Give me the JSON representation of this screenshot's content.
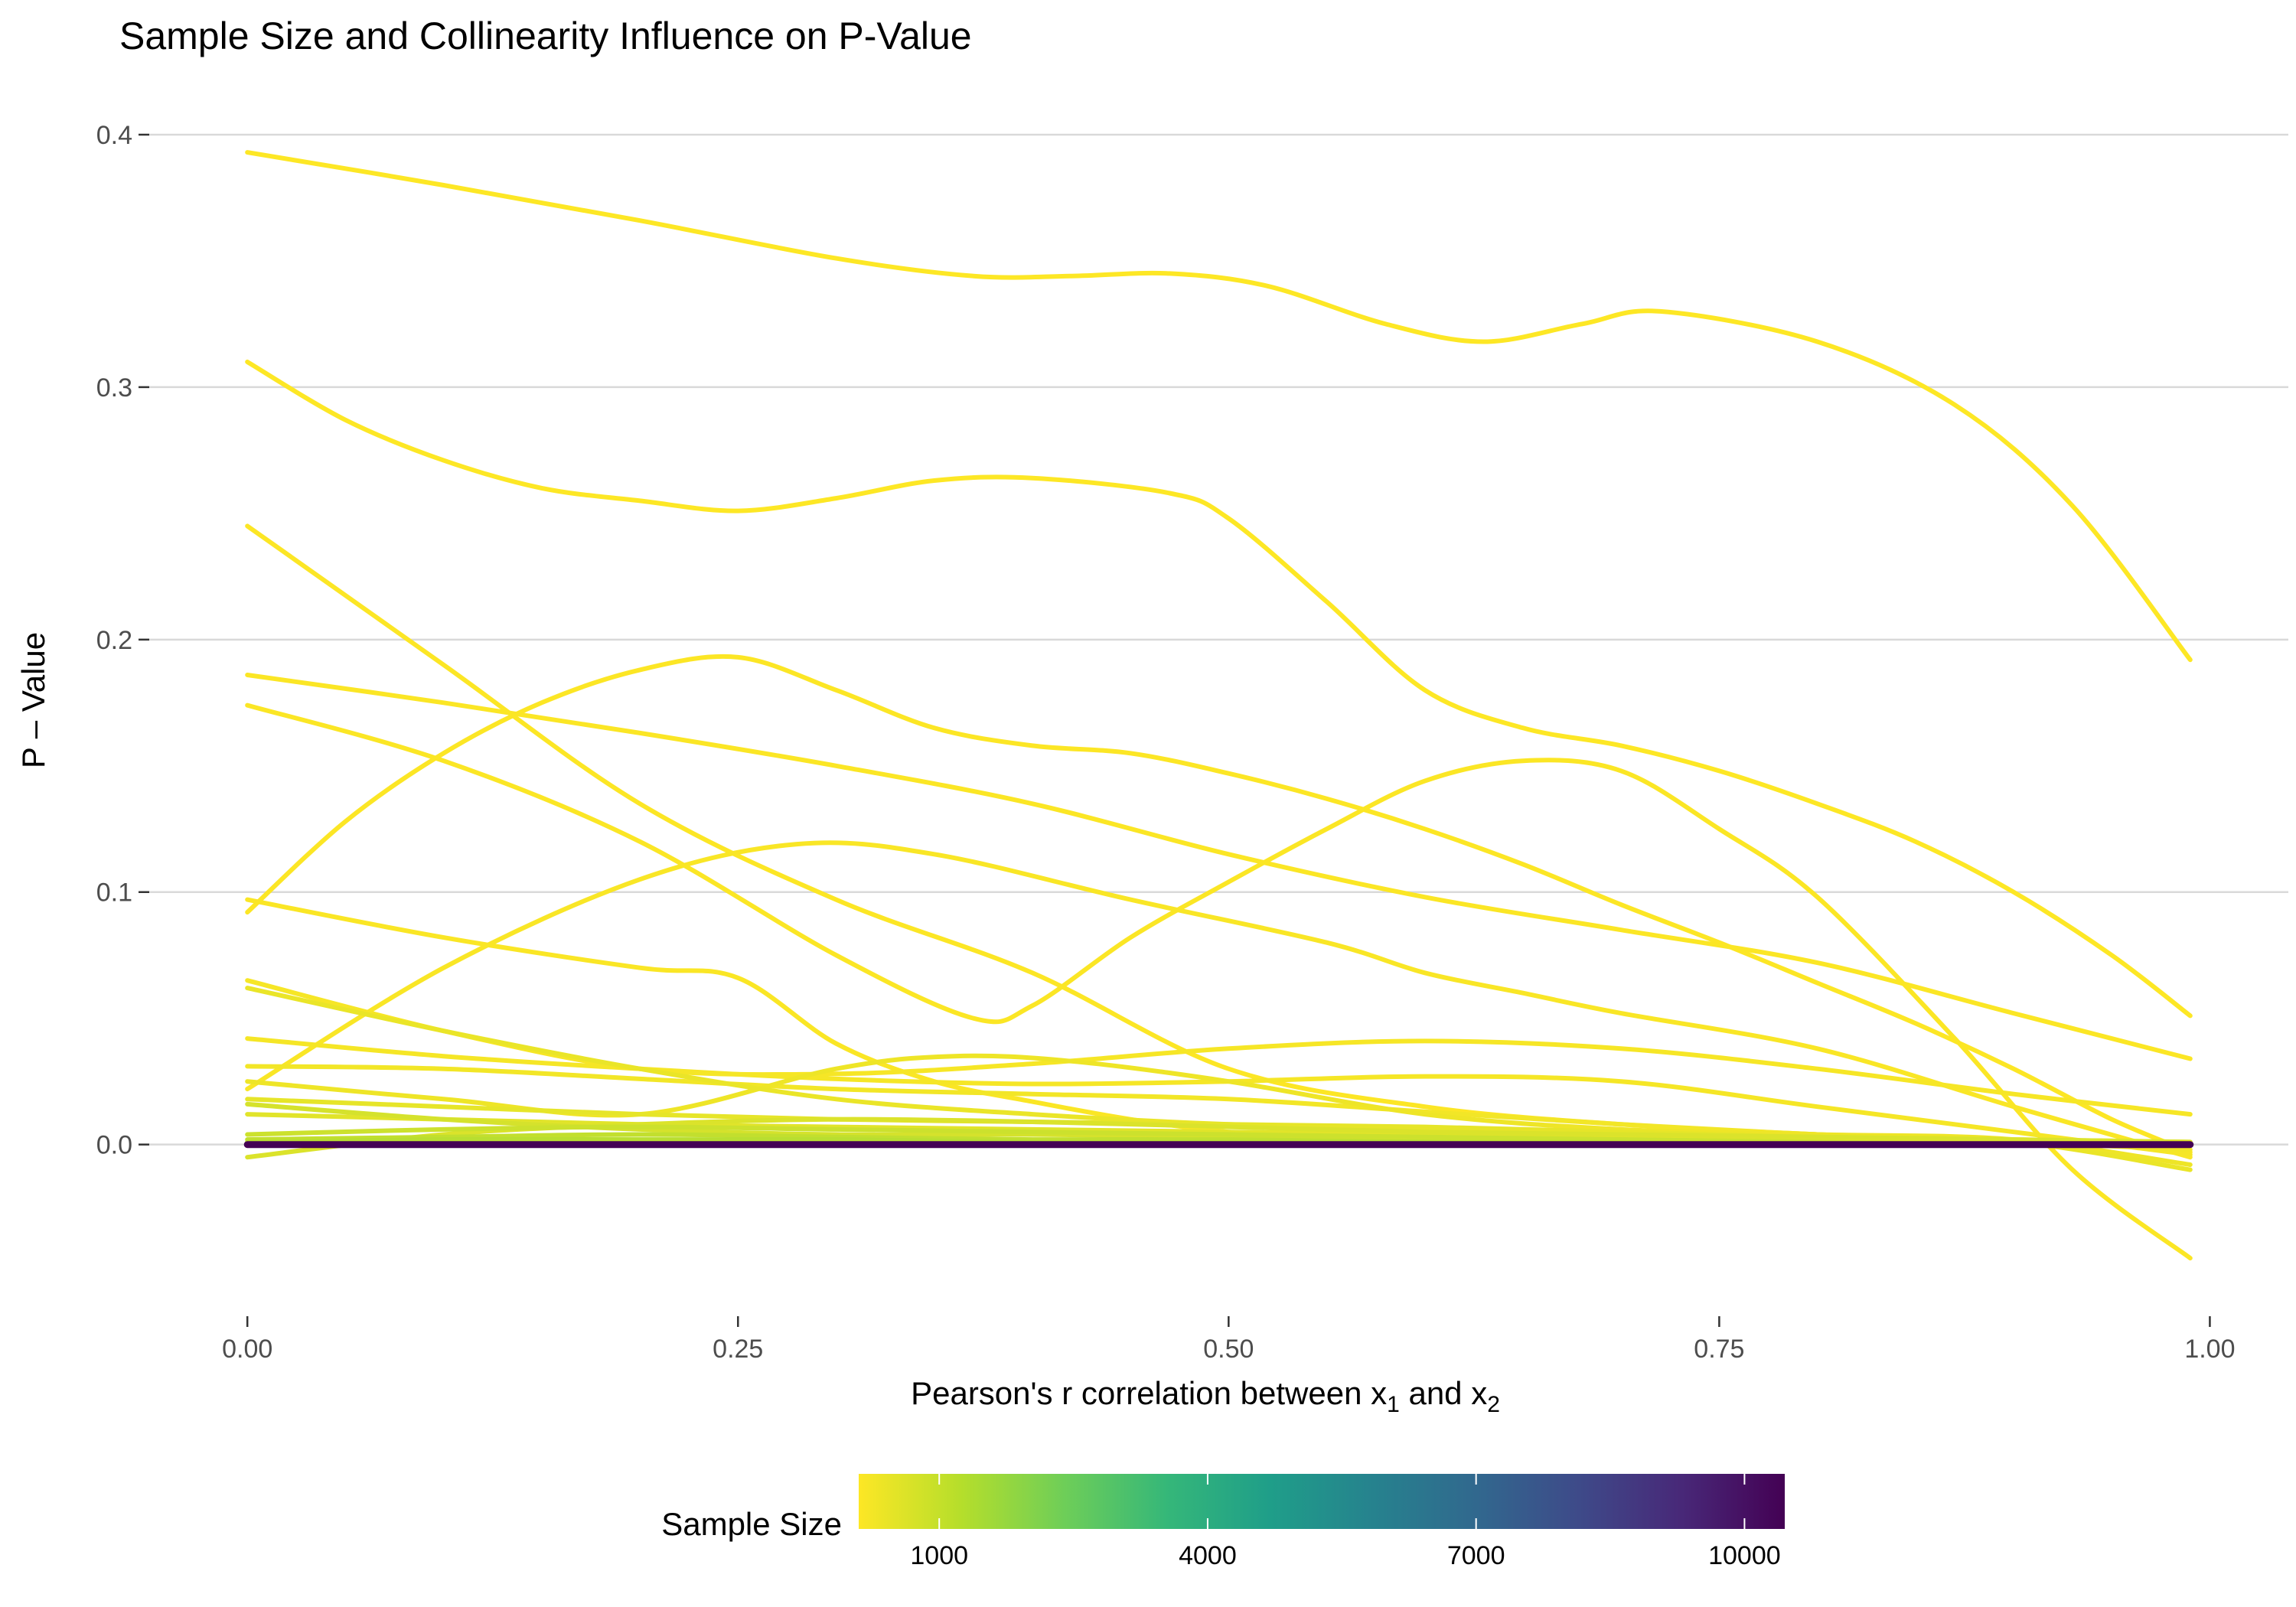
{
  "chart_data": {
    "type": "line",
    "title": "Sample Size and Collinearity Influence on P-Value",
    "xlabel": {
      "base": "Pearson's r correlation between x",
      "sub1": "1",
      "mid": " and x",
      "sub2": "2"
    },
    "ylabel": "P – Value",
    "xlim": [
      -0.05,
      1.04
    ],
    "ylim": [
      -0.068,
      0.42
    ],
    "x_ticks": [
      {
        "value": 0.0,
        "label": "0.00"
      },
      {
        "value": 0.25,
        "label": "0.25"
      },
      {
        "value": 0.5,
        "label": "0.50"
      },
      {
        "value": 0.75,
        "label": "0.75"
      },
      {
        "value": 1.0,
        "label": "1.00"
      }
    ],
    "y_ticks": [
      {
        "value": 0.0,
        "label": "0.0"
      },
      {
        "value": 0.1,
        "label": "0.1"
      },
      {
        "value": 0.2,
        "label": "0.2"
      },
      {
        "value": 0.3,
        "label": "0.3"
      },
      {
        "value": 0.4,
        "label": "0.4"
      }
    ],
    "grid": "horizontal",
    "legend": {
      "title": "Sample Size",
      "position": "bottom",
      "type": "colorbar",
      "range": [
        100,
        10450
      ],
      "ticks": [
        {
          "value": 1000,
          "label": "1000"
        },
        {
          "value": 4000,
          "label": "4000"
        },
        {
          "value": 7000,
          "label": "7000"
        },
        {
          "value": 10000,
          "label": "10000"
        }
      ],
      "colormap": [
        "#FDE725",
        "#B5DE2B",
        "#6ECE58",
        "#35B779",
        "#1F9E89",
        "#26828E",
        "#31688E",
        "#3E4A89",
        "#482878",
        "#440154"
      ]
    },
    "series": [
      {
        "sample_size": 100,
        "color": "#FDE725",
        "x": [
          0,
          0.1,
          0.2,
          0.3,
          0.37,
          0.42,
          0.47,
          0.52,
          0.58,
          0.63,
          0.68,
          0.72,
          0.8,
          0.87,
          0.93,
          0.99
        ],
        "y": [
          0.393,
          0.38,
          0.366,
          0.351,
          0.344,
          0.344,
          0.345,
          0.34,
          0.325,
          0.318,
          0.325,
          0.33,
          0.318,
          0.293,
          0.253,
          0.192
        ]
      },
      {
        "sample_size": 150,
        "color": "#FDE725",
        "x": [
          0,
          0.05,
          0.1,
          0.15,
          0.2,
          0.25,
          0.3,
          0.35,
          0.4,
          0.47,
          0.5,
          0.55,
          0.6,
          0.65,
          0.7,
          0.75,
          0.8,
          0.85,
          0.9,
          0.95,
          0.99
        ],
        "y": [
          0.31,
          0.287,
          0.271,
          0.26,
          0.255,
          0.251,
          0.256,
          0.263,
          0.264,
          0.258,
          0.248,
          0.215,
          0.18,
          0.165,
          0.158,
          0.148,
          0.135,
          0.12,
          0.1,
          0.075,
          0.051
        ]
      },
      {
        "sample_size": 200,
        "color": "#FCE625",
        "x": [
          0,
          0.05,
          0.1,
          0.15,
          0.2,
          0.25,
          0.3,
          0.35,
          0.4,
          0.45,
          0.5,
          0.55,
          0.6,
          0.65,
          0.7,
          0.75,
          0.8,
          0.85,
          0.9,
          0.95,
          0.99
        ],
        "y": [
          0.092,
          0.128,
          0.155,
          0.175,
          0.188,
          0.193,
          0.18,
          0.165,
          0.158,
          0.155,
          0.147,
          0.137,
          0.125,
          0.111,
          0.095,
          0.08,
          0.064,
          0.048,
          0.03,
          0.01,
          -0.003
        ]
      },
      {
        "sample_size": 250,
        "color": "#FCE625",
        "x": [
          0,
          0.1,
          0.2,
          0.3,
          0.4,
          0.5,
          0.6,
          0.7,
          0.8,
          0.87,
          0.93,
          0.99
        ],
        "y": [
          0.245,
          0.19,
          0.135,
          0.097,
          0.068,
          0.03,
          0.015,
          0.008,
          0.004,
          0.002,
          0.001,
          0.0
        ]
      },
      {
        "sample_size": 300,
        "color": "#FBE625",
        "x": [
          0,
          0.1,
          0.2,
          0.3,
          0.4,
          0.5,
          0.6,
          0.7,
          0.8,
          0.9,
          0.99
        ],
        "y": [
          0.186,
          0.175,
          0.163,
          0.15,
          0.135,
          0.115,
          0.098,
          0.085,
          0.072,
          0.052,
          0.034
        ]
      },
      {
        "sample_size": 350,
        "color": "#FBE625",
        "x": [
          0,
          0.1,
          0.2,
          0.3,
          0.37,
          0.4,
          0.45,
          0.5,
          0.55,
          0.6,
          0.65,
          0.7,
          0.75,
          0.8,
          0.87,
          0.93,
          0.99
        ],
        "y": [
          0.174,
          0.152,
          0.12,
          0.075,
          0.05,
          0.055,
          0.082,
          0.104,
          0.125,
          0.144,
          0.152,
          0.148,
          0.125,
          0.098,
          0.042,
          -0.01,
          -0.045
        ]
      },
      {
        "sample_size": 400,
        "color": "#FAE625",
        "x": [
          0,
          0.1,
          0.2,
          0.25,
          0.3,
          0.35,
          0.4,
          0.45,
          0.5,
          0.55,
          0.6,
          0.7,
          0.8,
          0.9,
          0.99
        ],
        "y": [
          0.097,
          0.082,
          0.07,
          0.066,
          0.04,
          0.025,
          0.017,
          0.01,
          0.005,
          0.003,
          0.002,
          0.001,
          0.0,
          0.0,
          0.0
        ]
      },
      {
        "sample_size": 450,
        "color": "#F9E626",
        "x": [
          0,
          0.1,
          0.2,
          0.28,
          0.35,
          0.45,
          0.55,
          0.6,
          0.65,
          0.7,
          0.8,
          0.9,
          0.99
        ],
        "y": [
          0.022,
          0.07,
          0.105,
          0.119,
          0.115,
          0.097,
          0.08,
          0.068,
          0.06,
          0.052,
          0.038,
          0.015,
          -0.005
        ]
      },
      {
        "sample_size": 500,
        "color": "#F6E626",
        "x": [
          0,
          0.1,
          0.2,
          0.3,
          0.4,
          0.5,
          0.6,
          0.7,
          0.8,
          0.9,
          0.99
        ],
        "y": [
          0.065,
          0.045,
          0.03,
          0.028,
          0.032,
          0.038,
          0.041,
          0.038,
          0.03,
          0.02,
          0.012
        ]
      },
      {
        "sample_size": 550,
        "color": "#F5E626",
        "x": [
          0,
          0.1,
          0.2,
          0.3,
          0.4,
          0.5,
          0.6,
          0.7,
          0.8,
          0.9,
          0.99
        ],
        "y": [
          0.042,
          0.035,
          0.03,
          0.026,
          0.024,
          0.025,
          0.027,
          0.025,
          0.015,
          0.005,
          -0.004
        ]
      },
      {
        "sample_size": 600,
        "color": "#F2E627",
        "x": [
          0,
          0.1,
          0.2,
          0.3,
          0.4,
          0.5,
          0.6,
          0.7,
          0.8,
          0.9,
          0.99
        ],
        "y": [
          0.031,
          0.03,
          0.026,
          0.022,
          0.02,
          0.018,
          0.013,
          0.008,
          0.004,
          0.001,
          -0.002
        ]
      },
      {
        "sample_size": 650,
        "color": "#EEE527",
        "x": [
          0,
          0.1,
          0.2,
          0.3,
          0.36,
          0.42,
          0.5,
          0.6,
          0.7,
          0.8,
          0.9,
          0.99
        ],
        "y": [
          0.025,
          0.018,
          0.012,
          0.03,
          0.035,
          0.033,
          0.025,
          0.012,
          0.006,
          0.004,
          0.002,
          -0.008
        ]
      },
      {
        "sample_size": 700,
        "color": "#EAE528",
        "x": [
          0,
          0.1,
          0.2,
          0.3,
          0.4,
          0.5,
          0.6,
          0.7,
          0.8,
          0.9,
          0.99
        ],
        "y": [
          0.062,
          0.045,
          0.03,
          0.018,
          0.012,
          0.008,
          0.006,
          0.004,
          0.002,
          0.001,
          -0.01
        ]
      },
      {
        "sample_size": 750,
        "color": "#E6E529",
        "x": [
          0,
          0.1,
          0.2,
          0.3,
          0.4,
          0.5,
          0.6,
          0.7,
          0.8,
          0.9,
          0.99
        ],
        "y": [
          0.018,
          0.015,
          0.012,
          0.01,
          0.009,
          0.008,
          0.007,
          0.005,
          0.003,
          0.002,
          0.001
        ]
      },
      {
        "sample_size": 800,
        "color": "#E1E42A",
        "x": [
          0,
          0.1,
          0.2,
          0.3,
          0.4,
          0.5,
          0.6,
          0.7,
          0.8,
          0.9,
          0.99
        ],
        "y": [
          0.012,
          0.01,
          0.008,
          0.007,
          0.006,
          0.005,
          0.004,
          0.003,
          0.002,
          0.001,
          0.0
        ]
      },
      {
        "sample_size": 850,
        "color": "#DBE32B",
        "x": [
          0,
          0.1,
          0.2,
          0.3,
          0.4,
          0.5,
          0.6,
          0.7,
          0.8,
          0.9,
          0.99
        ],
        "y": [
          -0.005,
          0.004,
          0.008,
          0.01,
          0.009,
          0.007,
          0.005,
          0.004,
          0.003,
          0.002,
          0.001
        ]
      },
      {
        "sample_size": 900,
        "color": "#D5E22C",
        "x": [
          0,
          0.1,
          0.2,
          0.3,
          0.4,
          0.5,
          0.6,
          0.7,
          0.8,
          0.9,
          0.99
        ],
        "y": [
          0.016,
          0.01,
          0.006,
          0.004,
          0.004,
          0.003,
          0.002,
          0.002,
          0.001,
          0.0,
          0.0
        ]
      },
      {
        "sample_size": 1000,
        "color": "#CCE12D",
        "x": [
          0,
          0.1,
          0.2,
          0.3,
          0.4,
          0.5,
          0.6,
          0.7,
          0.8,
          0.9,
          0.99
        ],
        "y": [
          0.004,
          0.006,
          0.007,
          0.006,
          0.005,
          0.004,
          0.003,
          0.002,
          0.001,
          0.0,
          0.0
        ]
      },
      {
        "sample_size": 1200,
        "color": "#C2DF2E",
        "x": [
          0,
          0.1,
          0.2,
          0.3,
          0.4,
          0.5,
          0.6,
          0.7,
          0.8,
          0.9,
          0.99
        ],
        "y": [
          0.002,
          0.003,
          0.004,
          0.003,
          0.002,
          0.002,
          0.001,
          0.001,
          0.0,
          0.0,
          0.0
        ]
      },
      {
        "sample_size": 1500,
        "color": "#B8DE30",
        "x": [
          0,
          0.1,
          0.2,
          0.3,
          0.4,
          0.5,
          0.6,
          0.7,
          0.8,
          0.9,
          0.99
        ],
        "y": [
          0.001,
          0.002,
          0.002,
          0.002,
          0.001,
          0.001,
          0.001,
          0.0,
          0.0,
          0.0,
          0.0
        ]
      },
      {
        "sample_size": 10000,
        "color": "#440154",
        "x": [
          0,
          0.5,
          0.99
        ],
        "y": [
          0.0,
          0.0,
          0.0
        ]
      }
    ]
  }
}
